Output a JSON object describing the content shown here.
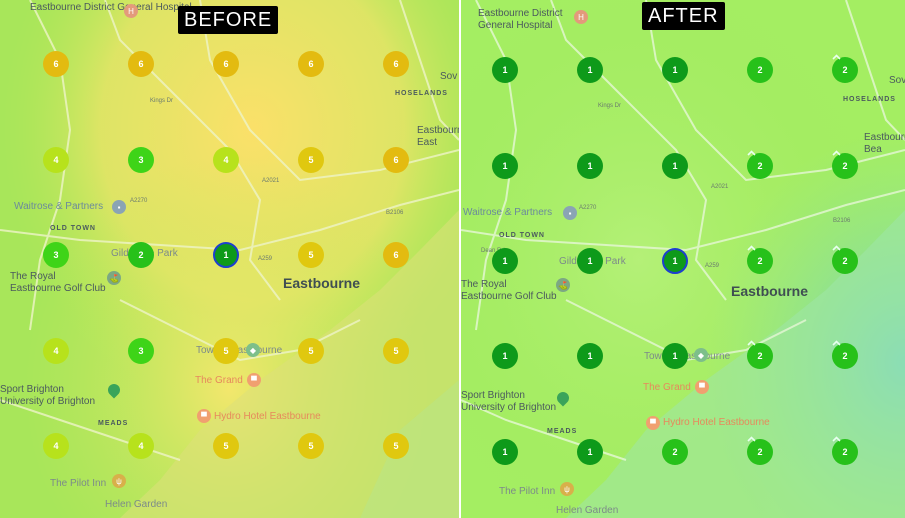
{
  "panels": [
    {
      "id": "before",
      "title": "BEFORE",
      "heat_colors": [
        "#9ee84a",
        "#ffe66d",
        "#e8e35a",
        "#a6e66a"
      ],
      "labels": {
        "hospital": "Eastbourne District\nGeneral Hospital",
        "hoselands": "HOSELANDS",
        "eastbourne_east": "Eastbourne\nEast",
        "waitrose": "Waitrose & Partners",
        "old_town": "OLD TOWN",
        "gildredge": "Gildredge Park",
        "royal_golf": "The Royal\nEastbourne Golf Club",
        "eastbourne": "Eastbourne",
        "towner": "Towner Eastbourne",
        "sport_brighton": "Sport Brighton\nUniversity of Brighton",
        "grand": "The Grand",
        "hydro": "Hydro Hotel Eastbourne",
        "meads": "MEADS",
        "pilot": "The Pilot Inn",
        "helen": "Helen Garden",
        "sov": "Sov",
        "kings_dr": "Kings Dr",
        "a2021": "A2021",
        "a2270": "A2270",
        "a259": "A259",
        "b2106": "B2106",
        "dean_rd": "Dean Rd"
      },
      "grid": [
        [
          6,
          6,
          6,
          6,
          6
        ],
        [
          4,
          3,
          4,
          5,
          6
        ],
        [
          3,
          2,
          1,
          5,
          6
        ],
        [
          4,
          3,
          5,
          5,
          5
        ],
        [
          4,
          4,
          5,
          5,
          5
        ]
      ],
      "selected": {
        "row": 2,
        "col": 2
      }
    },
    {
      "id": "after",
      "title": "AFTER",
      "heat_colors": [
        "#a3ef5d",
        "#b3f07a",
        "#8fe39a",
        "#7ad6bc"
      ],
      "labels": {
        "hospital": "Eastbourne District\nGeneral Hospital",
        "hoselands": "HOSELANDS",
        "eastbourne_east": "Eastbourne\nBea",
        "waitrose": "Waitrose & Partners",
        "old_town": "OLD TOWN",
        "gildredge": "Gildredge Park",
        "royal_golf": "The Royal\nEastbourne Golf Club",
        "eastbourne": "Eastbourne",
        "towner": "Towner Eastbourne",
        "sport_brighton": "Sport Brighton\nUniversity of Brighton",
        "grand": "The Grand",
        "hydro": "Hydro Hotel Eastbourne",
        "meads": "MEADS",
        "pilot": "The Pilot Inn",
        "helen": "Helen Garden",
        "sov": "Sov",
        "kings_dr": "Kings Dr",
        "a2021": "A2021",
        "a2270": "A2270",
        "a259": "A259",
        "b2106": "B2106",
        "dean_rd": "Dean Rd"
      },
      "grid": [
        [
          1,
          1,
          1,
          2,
          2
        ],
        [
          1,
          1,
          1,
          2,
          2
        ],
        [
          1,
          1,
          1,
          2,
          2
        ],
        [
          1,
          1,
          1,
          2,
          2
        ],
        [
          1,
          1,
          2,
          2,
          2
        ]
      ],
      "improved": [
        [
          false,
          false,
          false,
          false,
          true
        ],
        [
          false,
          false,
          false,
          true,
          true
        ],
        [
          false,
          false,
          false,
          true,
          true
        ],
        [
          false,
          false,
          false,
          true,
          true
        ],
        [
          false,
          false,
          false,
          true,
          true
        ]
      ],
      "selected": {
        "row": 2,
        "col": 2
      }
    }
  ],
  "rank_colors": {
    "1": "#0e9a1a",
    "2": "#27c11a",
    "3": "#3ed418",
    "4": "#b7e21c",
    "5": "#e0c80f",
    "6": "#e3bb10"
  },
  "icons": {
    "hospital": "hospital-h-icon",
    "waitrose": "shopping-bag-icon",
    "golf": "golf-icon",
    "towner": "museum-icon",
    "sport": "location-pin-icon",
    "grand": "hotel-icon",
    "hydro": "hotel-icon",
    "pilot": "restaurant-icon",
    "improved": "rank-up-tick-icon"
  }
}
